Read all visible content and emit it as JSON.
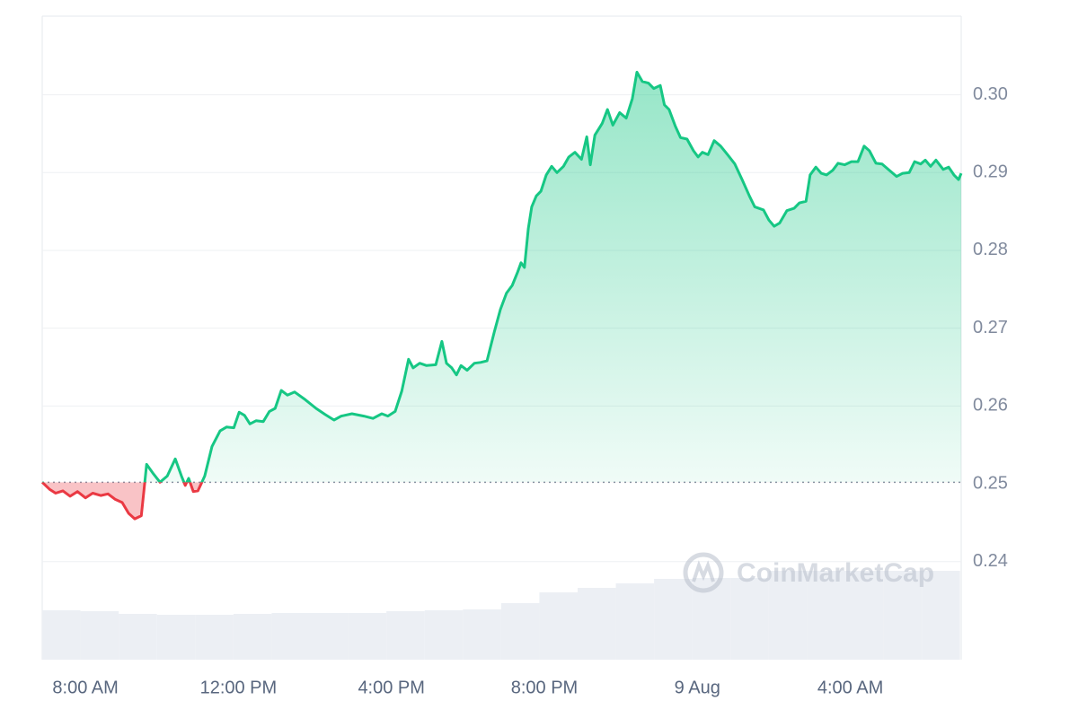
{
  "chart_data": {
    "type": "line",
    "watermark": "CoinMarketCap",
    "x": [
      6.87,
      7.06,
      7.22,
      7.41,
      7.6,
      7.79,
      8.0,
      8.19,
      8.4,
      8.59,
      8.78,
      8.96,
      9.13,
      9.29,
      9.46,
      9.53,
      9.6,
      9.76,
      9.95,
      10.14,
      10.35,
      10.51,
      10.61,
      10.7,
      10.82,
      10.94,
      11.12,
      11.31,
      11.52,
      11.69,
      11.88,
      12.02,
      12.16,
      12.3,
      12.46,
      12.65,
      12.81,
      12.96,
      13.12,
      13.28,
      13.47,
      13.75,
      14.03,
      14.27,
      14.5,
      14.69,
      14.97,
      15.28,
      15.52,
      15.75,
      15.91,
      16.1,
      16.27,
      16.45,
      16.57,
      16.74,
      16.92,
      17.16,
      17.32,
      17.44,
      17.58,
      17.7,
      17.82,
      17.98,
      18.17,
      18.33,
      18.5,
      18.69,
      18.85,
      19.01,
      19.16,
      19.3,
      19.39,
      19.48,
      19.58,
      19.67,
      19.79,
      19.91,
      20.05,
      20.19,
      20.33,
      20.5,
      20.64,
      20.8,
      20.97,
      21.11,
      21.2,
      21.32,
      21.51,
      21.65,
      21.79,
      21.97,
      22.14,
      22.3,
      22.42,
      22.56,
      22.72,
      22.86,
      23.03,
      23.14,
      23.26,
      23.42,
      23.56,
      23.73,
      23.9,
      24.02,
      24.13,
      24.28,
      24.44,
      24.61,
      24.79,
      24.98,
      25.17,
      25.36,
      25.5,
      25.73,
      25.87,
      26.01,
      26.15,
      26.34,
      26.53,
      26.67,
      26.84,
      26.95,
      27.1,
      27.24,
      27.38,
      27.54,
      27.68,
      27.85,
      28.03,
      28.2,
      28.36,
      28.5,
      28.67,
      28.83,
      29.02,
      29.21,
      29.37,
      29.54,
      29.68,
      29.84,
      29.96,
      30.1,
      30.24,
      30.43,
      30.57,
      30.71,
      30.83,
      30.9
    ],
    "values": [
      0.2502,
      0.2493,
      0.2488,
      0.2491,
      0.2484,
      0.249,
      0.2482,
      0.2488,
      0.2485,
      0.2487,
      0.248,
      0.2476,
      0.2462,
      0.2455,
      0.2459,
      0.2491,
      0.2525,
      0.2514,
      0.2502,
      0.251,
      0.2532,
      0.251,
      0.2498,
      0.2507,
      0.249,
      0.2491,
      0.251,
      0.2548,
      0.2568,
      0.2573,
      0.2572,
      0.2592,
      0.2588,
      0.2577,
      0.2581,
      0.258,
      0.2593,
      0.2597,
      0.262,
      0.2614,
      0.2618,
      0.2608,
      0.2597,
      0.2589,
      0.2582,
      0.2587,
      0.259,
      0.2587,
      0.2584,
      0.259,
      0.2587,
      0.2593,
      0.2619,
      0.266,
      0.2649,
      0.2655,
      0.2652,
      0.2653,
      0.2683,
      0.2655,
      0.2649,
      0.264,
      0.2652,
      0.2646,
      0.2655,
      0.2656,
      0.2658,
      0.2695,
      0.2724,
      0.2745,
      0.2755,
      0.2772,
      0.2784,
      0.2778,
      0.2828,
      0.2856,
      0.287,
      0.2876,
      0.2897,
      0.2908,
      0.29,
      0.2908,
      0.292,
      0.2926,
      0.2917,
      0.2946,
      0.291,
      0.2948,
      0.2963,
      0.2981,
      0.2961,
      0.2977,
      0.297,
      0.2995,
      0.3029,
      0.3017,
      0.3015,
      0.3008,
      0.3012,
      0.2987,
      0.2981,
      0.296,
      0.2945,
      0.2943,
      0.2928,
      0.292,
      0.2926,
      0.2923,
      0.2941,
      0.2934,
      0.2923,
      0.2911,
      0.2891,
      0.287,
      0.2856,
      0.2852,
      0.2839,
      0.2831,
      0.2835,
      0.2851,
      0.2854,
      0.2861,
      0.2863,
      0.2897,
      0.2907,
      0.2899,
      0.2897,
      0.2903,
      0.2912,
      0.291,
      0.2914,
      0.2914,
      0.2934,
      0.2928,
      0.2912,
      0.2911,
      0.2903,
      0.2895,
      0.2899,
      0.29,
      0.2914,
      0.2911,
      0.2916,
      0.2908,
      0.2916,
      0.2904,
      0.2907,
      0.2897,
      0.2891,
      0.2899
    ],
    "baseline": 0.2502,
    "color_up": "#16c784",
    "color_down": "#ea3943",
    "xlim": [
      6.87,
      30.9
    ],
    "xticks": [
      {
        "value": 8,
        "label": "8:00 AM"
      },
      {
        "value": 12,
        "label": "12:00 PM"
      },
      {
        "value": 16,
        "label": "4:00 PM"
      },
      {
        "value": 20,
        "label": "8:00 PM"
      },
      {
        "value": 24,
        "label": "9 Aug"
      },
      {
        "value": 28,
        "label": "4:00 AM"
      }
    ],
    "ylim": [
      0.2274,
      0.3101
    ],
    "yticks": [
      0.24,
      0.25,
      0.26,
      0.27,
      0.28,
      0.29,
      {
        "value": 0.3,
        "label": "0.30"
      }
    ],
    "grid": true,
    "volume": {
      "color": "#eceff4",
      "x": [
        7.37,
        8.37,
        9.37,
        10.37,
        11.37,
        12.37,
        13.37,
        14.37,
        15.37,
        16.37,
        17.37,
        18.37,
        19.37,
        20.37,
        21.37,
        22.37,
        23.37,
        24.37,
        25.37,
        26.37,
        27.37,
        28.37,
        29.37,
        30.37
      ],
      "values": [
        5.5,
        5.4,
        5.1,
        5.0,
        5.0,
        5.1,
        5.2,
        5.2,
        5.2,
        5.4,
        5.5,
        5.6,
        6.3,
        7.5,
        8.0,
        8.5,
        9.0,
        9.1,
        9.1,
        9.9,
        9.9,
        9.9,
        9.9,
        9.9
      ],
      "ylim": [
        0,
        71.7
      ]
    }
  }
}
